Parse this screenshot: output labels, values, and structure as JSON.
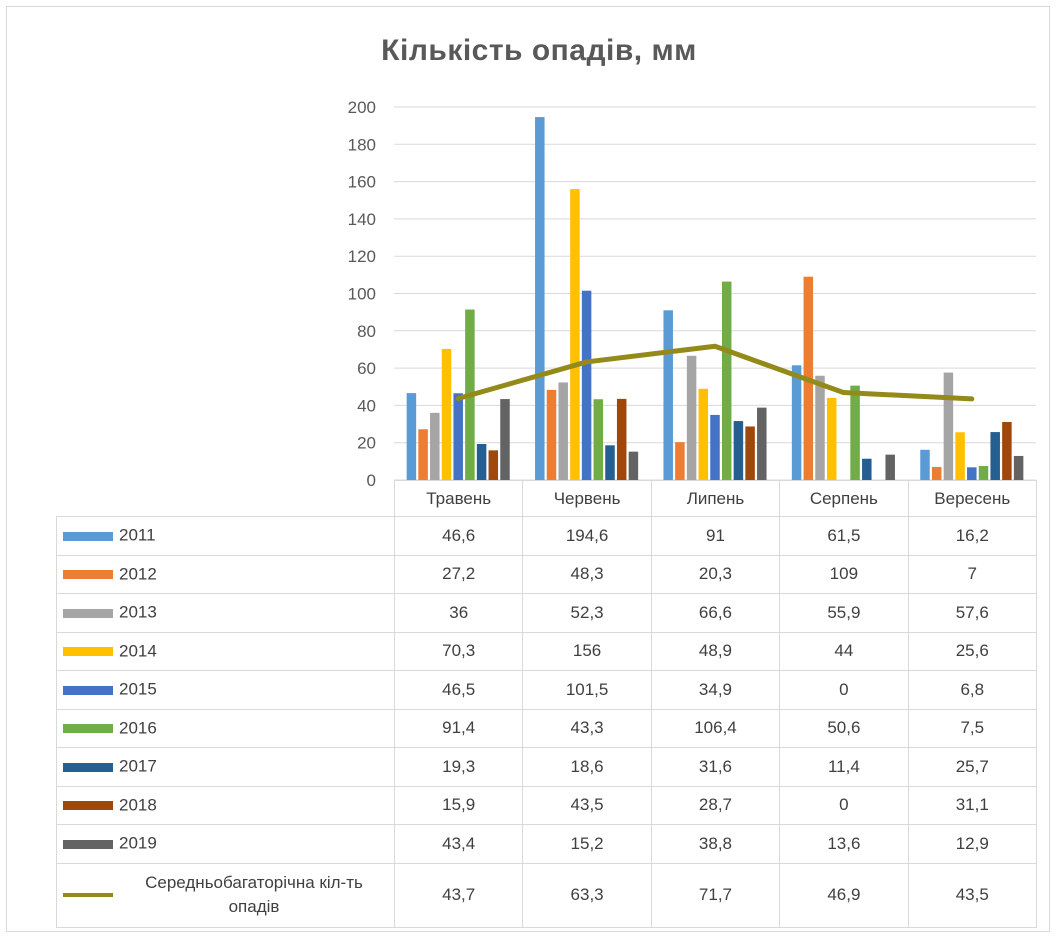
{
  "chart_data": {
    "type": "bar",
    "title": "Кількість опадів, мм",
    "categories": [
      "Травень",
      "Червень",
      "Липень",
      "Серпень",
      "Вересень"
    ],
    "ylim": [
      0,
      200
    ],
    "yticks": [
      0,
      20,
      40,
      60,
      80,
      100,
      120,
      140,
      160,
      180,
      200
    ],
    "grid": true,
    "legend": "data-table",
    "series": [
      {
        "name": "2011",
        "color": "#5b9bd5",
        "values": [
          46.6,
          194.6,
          91,
          61.5,
          16.2
        ],
        "labels": [
          "46,6",
          "194,6",
          "91",
          "61,5",
          "16,2"
        ]
      },
      {
        "name": "2012",
        "color": "#ed7d31",
        "values": [
          27.2,
          48.3,
          20.3,
          109,
          7
        ],
        "labels": [
          "27,2",
          "48,3",
          "20,3",
          "109",
          "7"
        ]
      },
      {
        "name": "2013",
        "color": "#a5a5a5",
        "values": [
          36,
          52.3,
          66.6,
          55.9,
          57.6
        ],
        "labels": [
          "36",
          "52,3",
          "66,6",
          "55,9",
          "57,6"
        ]
      },
      {
        "name": "2014",
        "color": "#ffc000",
        "values": [
          70.3,
          156,
          48.9,
          44,
          25.6
        ],
        "labels": [
          "70,3",
          "156",
          "48,9",
          "44",
          "25,6"
        ]
      },
      {
        "name": "2015",
        "color": "#4472c4",
        "values": [
          46.5,
          101.5,
          34.9,
          0,
          6.8
        ],
        "labels": [
          "46,5",
          "101,5",
          "34,9",
          "0",
          "6,8"
        ]
      },
      {
        "name": "2016",
        "color": "#70ad47",
        "values": [
          91.4,
          43.3,
          106.4,
          50.6,
          7.5
        ],
        "labels": [
          "91,4",
          "43,3",
          "106,4",
          "50,6",
          "7,5"
        ]
      },
      {
        "name": "2017",
        "color": "#255e91",
        "values": [
          19.3,
          18.6,
          31.6,
          11.4,
          25.7
        ],
        "labels": [
          "19,3",
          "18,6",
          "31,6",
          "11,4",
          "25,7"
        ]
      },
      {
        "name": "2018",
        "color": "#9e480e",
        "values": [
          15.9,
          43.5,
          28.7,
          0,
          31.1
        ],
        "labels": [
          "15,9",
          "43,5",
          "28,7",
          "0",
          "31,1"
        ]
      },
      {
        "name": "2019",
        "color": "#636363",
        "values": [
          43.4,
          15.2,
          38.8,
          13.6,
          12.9
        ],
        "labels": [
          "43,4",
          "15,2",
          "38,8",
          "13,6",
          "12,9"
        ]
      },
      {
        "name": "Середньобагаторічна кіл-ть опадів",
        "type": "line",
        "color": "#948a1a",
        "values": [
          43.7,
          63.3,
          71.7,
          46.9,
          43.5
        ],
        "labels": [
          "43,7",
          "63,3",
          "71,7",
          "46,9",
          "43,5"
        ]
      }
    ]
  }
}
